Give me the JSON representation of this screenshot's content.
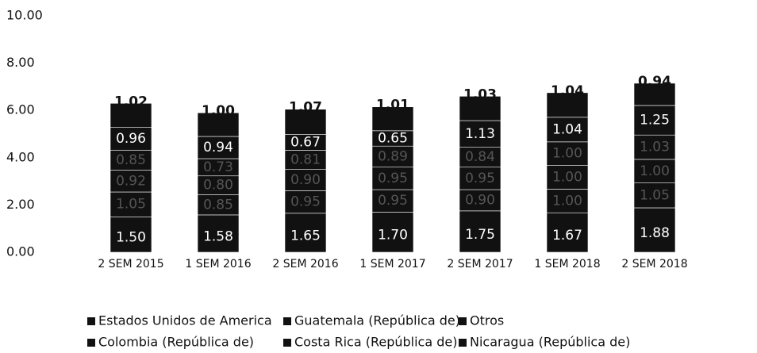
{
  "chart_data": {
    "type": "stacked_bar",
    "categories": [
      "2 SEM 2015",
      "1 SEM 2016",
      "2 SEM 2016",
      "1 SEM 2017",
      "2 SEM 2017",
      "1 SEM 2018",
      "2 SEM 2018"
    ],
    "series": [
      {
        "name": "Estados Unidos de America",
        "color": "#111111",
        "values": [
          1.5,
          1.58,
          1.65,
          1.7,
          1.75,
          1.67,
          1.88
        ],
        "value_labels": [
          "1.50",
          "1.58",
          "1.65",
          "1.70",
          "1.75",
          "1.67",
          "1.88"
        ]
      },
      {
        "name": "Guatemala (República de)",
        "color": "#111111",
        "values": [
          1.05,
          0.85,
          0.95,
          0.95,
          0.9,
          1.0,
          1.05
        ],
        "value_labels": [
          "1.05",
          "0.85",
          "0.95",
          "0.95",
          "0.90",
          "1.00",
          "1.05"
        ]
      },
      {
        "name": "Otros",
        "color": "#111111",
        "values": [
          0.92,
          0.8,
          0.9,
          0.95,
          0.95,
          1.0,
          1.0
        ],
        "value_labels": [
          "0.92",
          "0.80",
          "0.90",
          "0.95",
          "0.95",
          "1.00",
          "1.00"
        ]
      },
      {
        "name": "Colombia (República de)",
        "color": "#111111",
        "values": [
          0.85,
          0.73,
          0.81,
          0.89,
          0.84,
          1.0,
          1.03
        ],
        "value_labels": [
          "0.85",
          "0.73",
          "0.81",
          "0.89",
          "0.84",
          "1.00",
          "1.03"
        ]
      },
      {
        "name": "Costa Rica (República de)",
        "color": "#111111",
        "values": [
          0.96,
          0.94,
          0.67,
          0.65,
          1.13,
          1.04,
          1.25
        ],
        "value_labels": [
          "0.96",
          "0.94",
          "0.67",
          "0.65",
          "1.13",
          "1.04",
          "1.25"
        ]
      },
      {
        "name": "Nicaragua (República de)",
        "color": "#111111",
        "values": [
          1.02,
          1.0,
          1.07,
          1.01,
          1.03,
          1.04,
          0.94
        ],
        "value_labels": [
          "1.02",
          "1.00",
          "1.07",
          "1.01",
          "1.03",
          "1.04",
          "0.94"
        ]
      }
    ],
    "ylim": [
      0,
      10
    ],
    "yticks": [
      {
        "value": 0,
        "label": "0.00"
      },
      {
        "value": 2,
        "label": "2.00"
      },
      {
        "value": 4,
        "label": "4.00"
      },
      {
        "value": 6,
        "label": "6.00"
      },
      {
        "value": 8,
        "label": "8.00"
      },
      {
        "value": 10,
        "label": "10.00"
      }
    ],
    "legend": "bottom"
  }
}
